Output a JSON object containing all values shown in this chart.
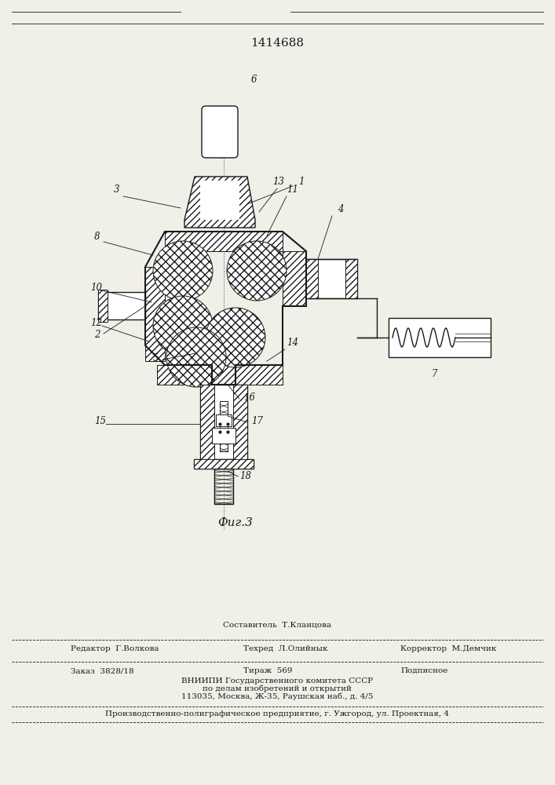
{
  "patent_number": "1414688",
  "fig_label": "Фиг.3",
  "bg_color": "#f0efe8",
  "line_color": "#1a1a1a",
  "footer": {
    "sestavitel_label": "Составитель  Т.Кланцова",
    "redaktor_label": "Редактор  Г.Волкова",
    "tehred_label": "Техред  Л.Олийнык",
    "korrektor_label": "Корректор  М.Демчик",
    "zakaz_label": "Заказ  3828/18",
    "tirazh_label": "Тираж  569",
    "podpisnoe_label": "Подписное",
    "vniiipi_line1": "ВНИИПИ Государственного комитета СССР",
    "vniiipi_line2": "по делам изобретений и открытий",
    "vniiipi_line3": "113035, Москва, Ж-35, Раушская наб., д. 4/5",
    "proizv_line": "Производственно-полиграфическое предприятие, г. Ужгород, ул. Проектная, 4"
  }
}
